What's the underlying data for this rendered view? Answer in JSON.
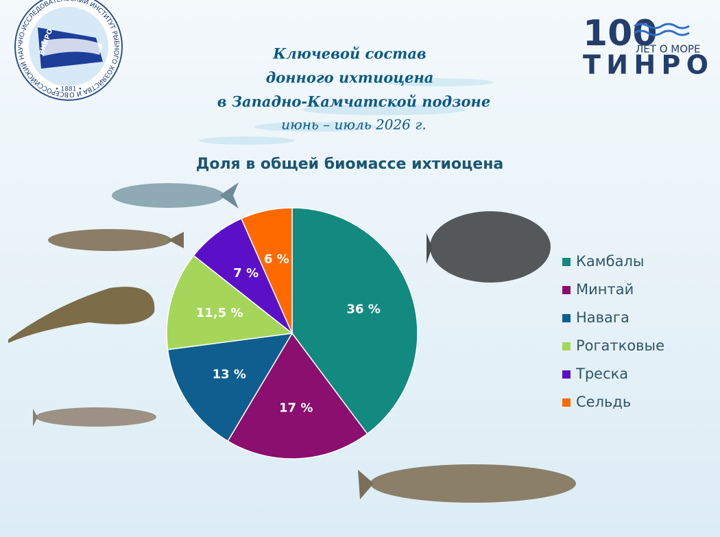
{
  "logos": {
    "left_ring": "ВСЕРОССИЙСКИЙ НАУЧНО-ИССЛЕДОВАТЕЛЬСКИЙ ИНСТИТУТ РЫБНОГО ХОЗЯЙСТВА И ОКЕАНОГРАФИИ",
    "left_year": "• 1881 •",
    "left_abbr": "ВНИРО",
    "right_number": "100",
    "right_tagline": "ЛЕТ О МОРЕ",
    "right_name": "ТИНРО"
  },
  "chart_data": {
    "type": "pie",
    "title_lines": [
      "Ключевой состав",
      "донного ихтиоцена",
      "в Западно-Камчатской подзоне"
    ],
    "period": "июнь – июль 2026 г.",
    "subtitle": "Доля в общей биомассе ихтиоцена",
    "categories": [
      "Камбалы",
      "Минтай",
      "Навага",
      "Рогатковые",
      "Треска",
      "Сельдь"
    ],
    "values": [
      36,
      17,
      13,
      11.5,
      7,
      6
    ],
    "value_labels": [
      "36 %",
      "17 %",
      "13 %",
      "11,5 %",
      "7 %",
      "6 %"
    ],
    "colors": [
      "#138a80",
      "#8b0f6e",
      "#0e5f8f",
      "#a5d65a",
      "#5b10c8",
      "#ff6a00"
    ],
    "legend": "right"
  }
}
